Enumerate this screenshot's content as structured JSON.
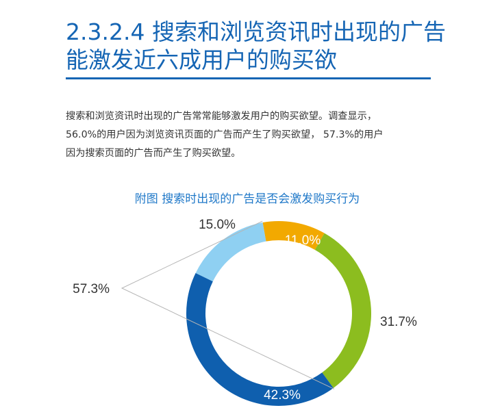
{
  "section": {
    "title_line1": "2.3.2.4 搜索和浏览资讯时出现的广告",
    "title_line2": "能激发近六成用户的购买欲"
  },
  "body": {
    "line1": "搜索和浏览资讯时出现的广告常常能够激发用户的购买欲望。调查显示，",
    "line2": "56.0%的用户因为浏览资讯页面的广告而产生了购买欲望， 57.3%的用户",
    "line3": "因为搜索页面的广告而产生了购买欲望。"
  },
  "chart_data": {
    "type": "pie",
    "title": "附图  搜索时出现的广告是否会激发购买行为",
    "donut": true,
    "labels": [
      "11.0%",
      "31.7%",
      "42.3%",
      "15.0%"
    ],
    "values": [
      11.0,
      31.7,
      42.3,
      15.0
    ],
    "colors": [
      "#f2a900",
      "#8cbd1f",
      "#0f5fae",
      "#8fd0f2"
    ],
    "annotation": {
      "text": "57.3%",
      "combines": [
        2,
        3
      ]
    }
  },
  "colors": {
    "title": "#1565b4",
    "chart_title": "#1f78c8",
    "text": "#333333",
    "leader": "#b5b5b5"
  }
}
